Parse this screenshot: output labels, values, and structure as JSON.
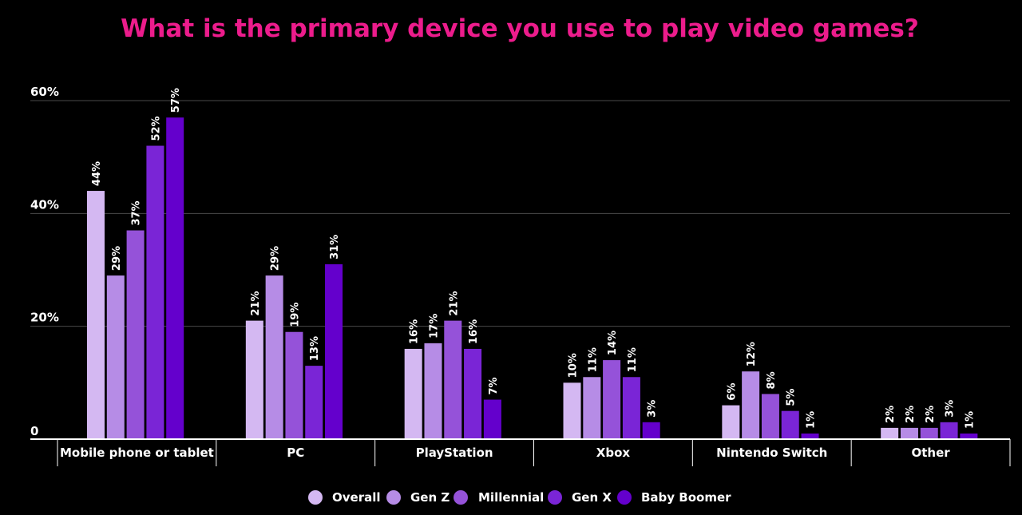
{
  "colors": {
    "background": "#000000",
    "title": "#ec1c8c",
    "grid": "#4a4a4a",
    "axis": "#ffffff",
    "text": "#ffffff"
  },
  "chart_data": {
    "type": "bar",
    "title": "What is the primary device you use to play video games?",
    "xlabel": "",
    "ylabel": "",
    "ylim": [
      0,
      60
    ],
    "yticks": [
      {
        "value": 0,
        "label": "0"
      },
      {
        "value": 20,
        "label": "20%"
      },
      {
        "value": 40,
        "label": "40%"
      },
      {
        "value": 60,
        "label": "60%"
      }
    ],
    "grid": true,
    "legend_position": "bottom-center",
    "categories": [
      "Mobile phone or tablet",
      "PC",
      "PlayStation",
      "Xbox",
      "Nintendo Switch",
      "Other"
    ],
    "series": [
      {
        "name": "Overall",
        "color": "#d4b8f2",
        "values": [
          44,
          21,
          16,
          10,
          6,
          2
        ],
        "labels": [
          "44%",
          "21%",
          "16%",
          "10%",
          "6%",
          "2%"
        ]
      },
      {
        "name": "Gen Z",
        "color": "#b68ce6",
        "values": [
          29,
          29,
          17,
          11,
          12,
          2
        ],
        "labels": [
          "29%",
          "29%",
          "17%",
          "11%",
          "12%",
          "2%"
        ]
      },
      {
        "name": "Millennial",
        "color": "#9552d9",
        "values": [
          37,
          19,
          21,
          14,
          8,
          2
        ],
        "labels": [
          "37%",
          "19%",
          "21%",
          "14%",
          "8%",
          "2%"
        ]
      },
      {
        "name": "Gen X",
        "color": "#7a25d6",
        "values": [
          52,
          13,
          16,
          11,
          5,
          3
        ],
        "labels": [
          "52%",
          "13%",
          "16%",
          "11%",
          "5%",
          "3%"
        ]
      },
      {
        "name": "Baby Boomer",
        "color": "#6400cc",
        "values": [
          57,
          31,
          7,
          3,
          1,
          1
        ],
        "labels": [
          "57%",
          "31%",
          "7%",
          "3%",
          "1%",
          "1%"
        ]
      }
    ]
  }
}
